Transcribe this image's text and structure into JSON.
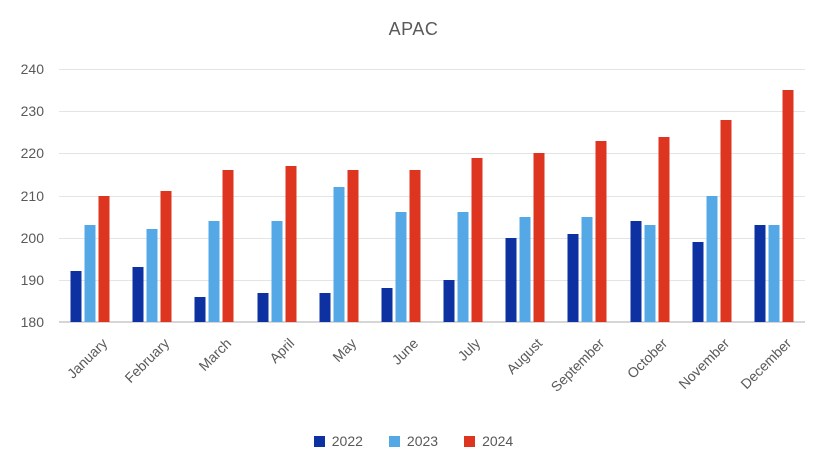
{
  "chart_data": {
    "type": "bar",
    "title": "APAC",
    "categories": [
      "January",
      "February",
      "March",
      "April",
      "May",
      "June",
      "July",
      "August",
      "September",
      "October",
      "November",
      "December"
    ],
    "series": [
      {
        "name": "2022",
        "color": "#0d31a1",
        "values": [
          192,
          193,
          186,
          187,
          187,
          188,
          190,
          200,
          201,
          204,
          199,
          203
        ]
      },
      {
        "name": "2023",
        "color": "#54a8e6",
        "values": [
          203,
          202,
          204,
          204,
          212,
          206,
          206,
          205,
          205,
          203,
          210,
          203
        ]
      },
      {
        "name": "2024",
        "color": "#de3520",
        "values": [
          210,
          211,
          216,
          217,
          216,
          216,
          219,
          220,
          223,
          224,
          228,
          235
        ]
      }
    ],
    "ylim": [
      180,
      240
    ],
    "yticks": [
      180,
      190,
      200,
      210,
      220,
      230,
      240
    ],
    "grid": true,
    "xlabel": "",
    "ylabel": "",
    "legend_position": "bottom",
    "colors": {
      "text": "#595959",
      "gridline": "#e4e4e4",
      "axis_line": "#d6d6d6",
      "background": "#ffffff"
    }
  }
}
